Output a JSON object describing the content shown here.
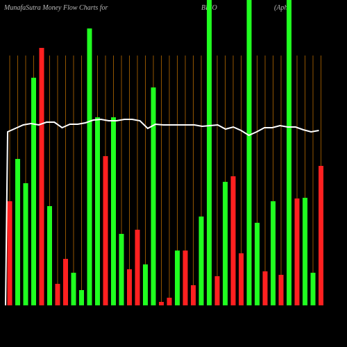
{
  "chart_data": {
    "type": "bar",
    "title": "MunafaSutra  Money Flow  Charts for",
    "ticker": "BBIO",
    "company": "(Apha",
    "grid": true,
    "grid_color": "#b86b00",
    "line_color": "#ffffff",
    "ylim": [
      0,
      440
    ],
    "categories": [
      null,
      null,
      null,
      null,
      null,
      null,
      null,
      null,
      null,
      null,
      null,
      null,
      null,
      null,
      null,
      null,
      null,
      null,
      null,
      null,
      null,
      null,
      null,
      null,
      null,
      null,
      null,
      null,
      null,
      null,
      null,
      null,
      null,
      null,
      null,
      null,
      null,
      null,
      null,
      null
    ],
    "values": [
      150,
      211,
      176,
      328,
      371,
      143,
      31,
      67,
      47,
      22,
      399,
      271,
      215,
      271,
      103,
      52,
      109,
      59,
      314,
      5,
      11,
      79,
      79,
      29,
      128,
      440,
      42,
      178,
      186,
      75,
      440,
      119,
      49,
      150,
      44,
      440,
      154,
      155,
      47,
      201
    ],
    "colors": [
      "#ff2020",
      "#20ff20",
      "#20ff20",
      "#20ff20",
      "#ff2020",
      "#20ff20",
      "#ff2020",
      "#ff2020",
      "#20ff20",
      "#20ff20",
      "#20ff20",
      "#20ff20",
      "#ff2020",
      "#20ff20",
      "#20ff20",
      "#ff2020",
      "#ff2020",
      "#20ff20",
      "#20ff20",
      "#ff2020",
      "#ff2020",
      "#20ff20",
      "#ff2020",
      "#ff2020",
      "#20ff20",
      "#20ff20",
      "#ff2020",
      "#20ff20",
      "#ff2020",
      "#ff2020",
      "#20ff20",
      "#20ff20",
      "#ff2020",
      "#20ff20",
      "#ff2020",
      "#20ff20",
      "#ff2020",
      "#20ff20",
      "#20ff20",
      "#ff2020"
    ],
    "line_values": [
      250,
      255,
      260,
      262,
      260,
      264,
      264,
      256,
      261,
      261,
      263,
      267,
      268,
      266,
      266,
      268,
      268,
      266,
      255,
      261,
      260,
      260,
      260,
      260,
      260,
      258,
      259,
      260,
      254,
      257,
      252,
      245,
      250,
      256,
      256,
      259,
      257,
      257,
      253,
      250,
      252
    ]
  }
}
